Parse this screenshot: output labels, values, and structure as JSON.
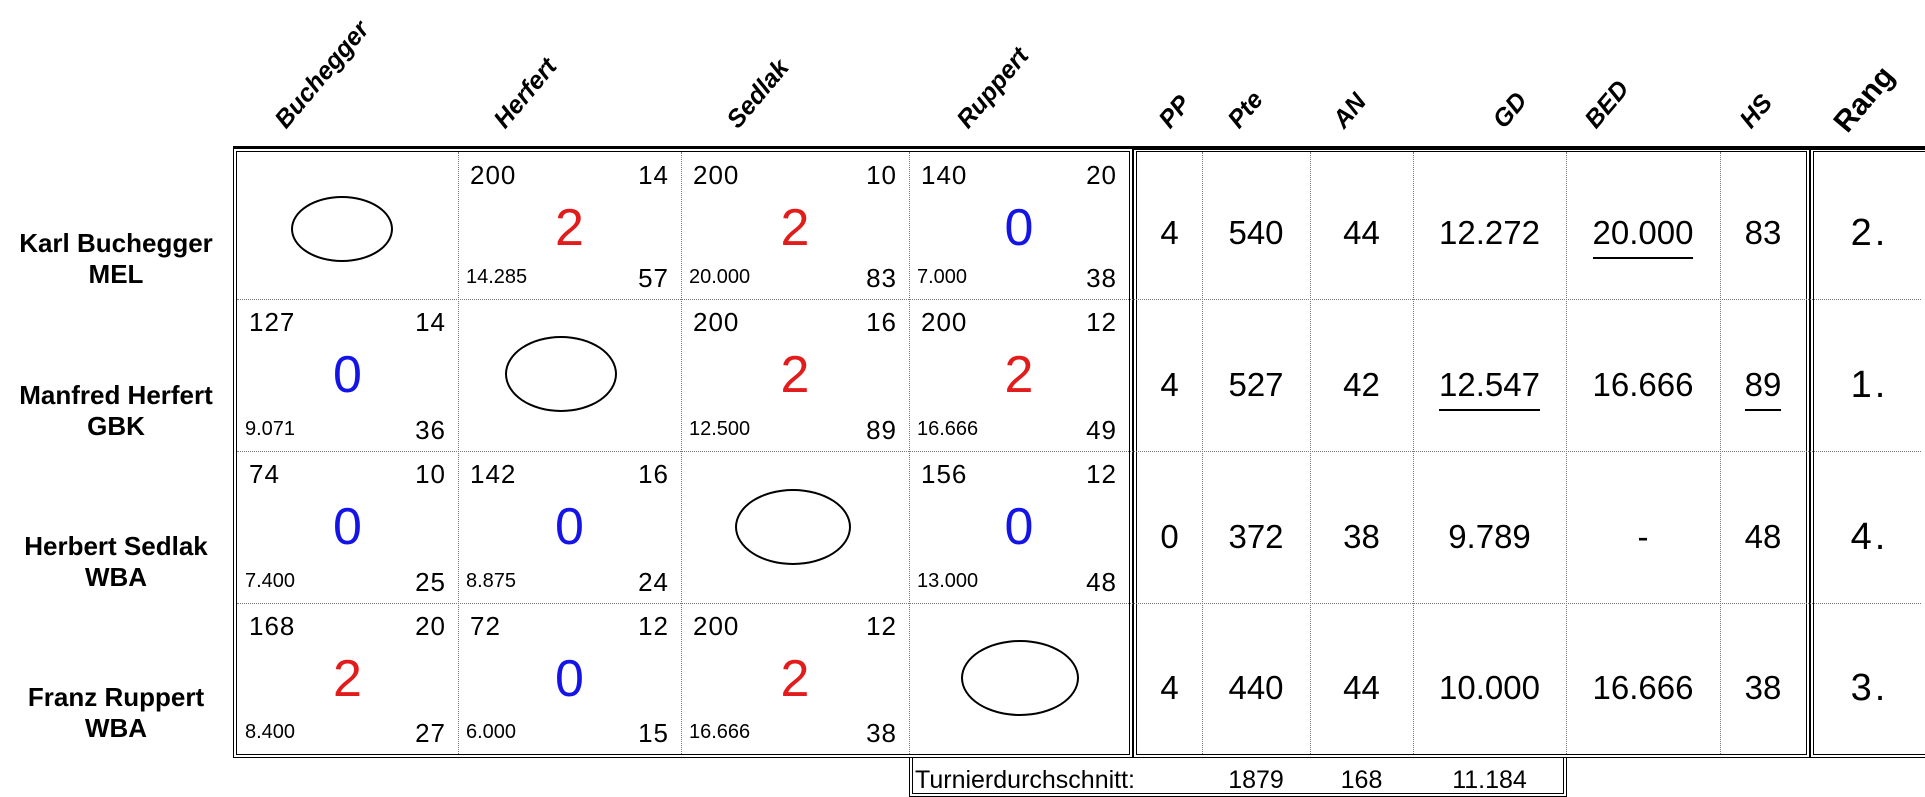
{
  "columns": {
    "opponents": [
      "Buchegger",
      "Herfert",
      "Sedlak",
      "Ruppert"
    ],
    "stats": [
      "PP",
      "Pte",
      "AN",
      "GD",
      "BED",
      "HS"
    ],
    "rank": "Rang"
  },
  "players": [
    {
      "name": "Karl Buchegger",
      "club": "MEL",
      "stats": {
        "PP": "4",
        "Pte": "540",
        "AN": "44",
        "GD": "12.272",
        "BED": "20.000",
        "HS": "83"
      },
      "rank": "2."
    },
    {
      "name": "Manfred Herfert",
      "club": "GBK",
      "stats": {
        "PP": "4",
        "Pte": "527",
        "AN": "42",
        "GD": "12.547",
        "BED": "16.666",
        "HS": "89"
      },
      "rank": "1."
    },
    {
      "name": "Herbert Sedlak",
      "club": "WBA",
      "stats": {
        "PP": "0",
        "Pte": "372",
        "AN": "38",
        "GD": "9.789",
        "BED": "-",
        "HS": "48"
      },
      "rank": "4."
    },
    {
      "name": "Franz Ruppert",
      "club": "WBA",
      "stats": {
        "PP": "4",
        "Pte": "440",
        "AN": "44",
        "GD": "10.000",
        "BED": "16.666",
        "HS": "38"
      },
      "rank": "3."
    }
  ],
  "matches": {
    "r0c1": {
      "pts": "200",
      "inn": "14",
      "gd": "14.285",
      "hs": "57",
      "mp": "2",
      "color": "#e21b1b"
    },
    "r0c2": {
      "pts": "200",
      "inn": "10",
      "gd": "20.000",
      "hs": "83",
      "mp": "2",
      "color": "#e21b1b"
    },
    "r0c3": {
      "pts": "140",
      "inn": "20",
      "gd": "7.000",
      "hs": "38",
      "mp": "0",
      "color": "#1414e6"
    },
    "r1c0": {
      "pts": "127",
      "inn": "14",
      "gd": "9.071",
      "hs": "36",
      "mp": "0",
      "color": "#1414e6"
    },
    "r1c2": {
      "pts": "200",
      "inn": "16",
      "gd": "12.500",
      "hs": "89",
      "mp": "2",
      "color": "#e21b1b"
    },
    "r1c3": {
      "pts": "200",
      "inn": "12",
      "gd": "16.666",
      "hs": "49",
      "mp": "2",
      "color": "#e21b1b"
    },
    "r2c0": {
      "pts": "74",
      "inn": "10",
      "gd": "7.400",
      "hs": "25",
      "mp": "0",
      "color": "#1414e6"
    },
    "r2c1": {
      "pts": "142",
      "inn": "16",
      "gd": "8.875",
      "hs": "24",
      "mp": "0",
      "color": "#1414e6"
    },
    "r2c3": {
      "pts": "156",
      "inn": "12",
      "gd": "13.000",
      "hs": "48",
      "mp": "0",
      "color": "#1414e6"
    },
    "r3c0": {
      "pts": "168",
      "inn": "20",
      "gd": "8.400",
      "hs": "27",
      "mp": "2",
      "color": "#e21b1b"
    },
    "r3c1": {
      "pts": "72",
      "inn": "12",
      "gd": "6.000",
      "hs": "15",
      "mp": "0",
      "color": "#1414e6"
    },
    "r3c2": {
      "pts": "200",
      "inn": "12",
      "gd": "16.666",
      "hs": "38",
      "mp": "2",
      "color": "#e21b1b"
    }
  },
  "footer": {
    "label": "Turnierdurchschnitt:",
    "pte": "1879",
    "an": "168",
    "gd": "11.184"
  }
}
